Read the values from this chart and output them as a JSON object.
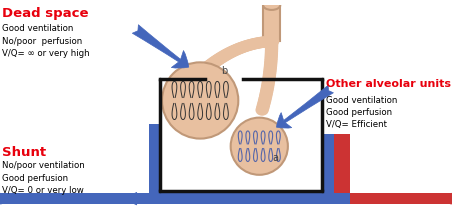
{
  "bg_color": "#ffffff",
  "dead_space_title": "Dead space",
  "dead_space_lines": [
    "Good ventilation",
    "No/poor  perfusion",
    "V/Q= ∞ or very high"
  ],
  "shunt_title": "Shunt",
  "shunt_lines": [
    "No/poor ventilation",
    "Good perfusion",
    "V/Q= 0 or very low"
  ],
  "other_title": "Other alveolar units",
  "other_lines": [
    "Good ventilation",
    "Good perfusion",
    "V/Q= Efficient"
  ],
  "red_label_color": "#e8000d",
  "skin_color": "#e8c0a0",
  "skin_edge": "#c09878",
  "blue_color": "#4466bb",
  "red_vessel_color": "#cc3333",
  "black_color": "#111111",
  "cap_color_b": "#333333",
  "cap_color_a": "#5566aa"
}
